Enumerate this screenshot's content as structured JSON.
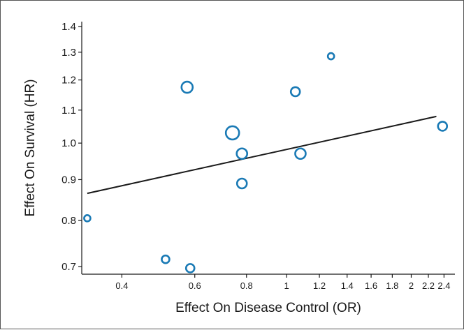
{
  "chart_data": {
    "type": "scatter",
    "title": "",
    "xlabel": "Effect On Disease Control (OR)",
    "ylabel": "Effect On Survival (HR)",
    "x_scale": "log",
    "y_scale": "log",
    "xlim": [
      0.32,
      2.55
    ],
    "ylim": [
      0.685,
      1.42
    ],
    "x_ticks": [
      0.4,
      0.6,
      0.8,
      1,
      1.2,
      1.4,
      1.6,
      1.8,
      2,
      2.2,
      2.4
    ],
    "x_tick_labels": [
      "0.4",
      "0.6",
      "0.8",
      "1",
      "1.2",
      "1.4",
      "1.6",
      "1.8",
      "2",
      "2.2",
      "2.4"
    ],
    "y_ticks": [
      0.7,
      0.8,
      0.9,
      1.0,
      1.1,
      1.2,
      1.3,
      1.4
    ],
    "y_tick_labels": [
      "0.7",
      "0.8",
      "0.9",
      "1.0",
      "1.1",
      "1.2",
      "1.3",
      "1.4"
    ],
    "grid": false,
    "marker_color": "#1a7ab5",
    "line_color": "#1a1a1a",
    "points": [
      {
        "x": 0.33,
        "y": 0.805,
        "size": 1
      },
      {
        "x": 0.51,
        "y": 0.715,
        "size": 1.4
      },
      {
        "x": 0.575,
        "y": 1.175,
        "size": 2.4
      },
      {
        "x": 0.585,
        "y": 0.697,
        "size": 1.6
      },
      {
        "x": 0.74,
        "y": 1.03,
        "size": 3
      },
      {
        "x": 0.78,
        "y": 0.97,
        "size": 2.2
      },
      {
        "x": 0.78,
        "y": 0.89,
        "size": 2
      },
      {
        "x": 1.05,
        "y": 1.16,
        "size": 1.8
      },
      {
        "x": 1.08,
        "y": 0.97,
        "size": 2.2
      },
      {
        "x": 1.28,
        "y": 1.285,
        "size": 1
      },
      {
        "x": 2.38,
        "y": 1.05,
        "size": 1.8
      }
    ],
    "fit_line": [
      {
        "x": 0.33,
        "y": 0.865
      },
      {
        "x": 2.3,
        "y": 1.08
      }
    ]
  }
}
